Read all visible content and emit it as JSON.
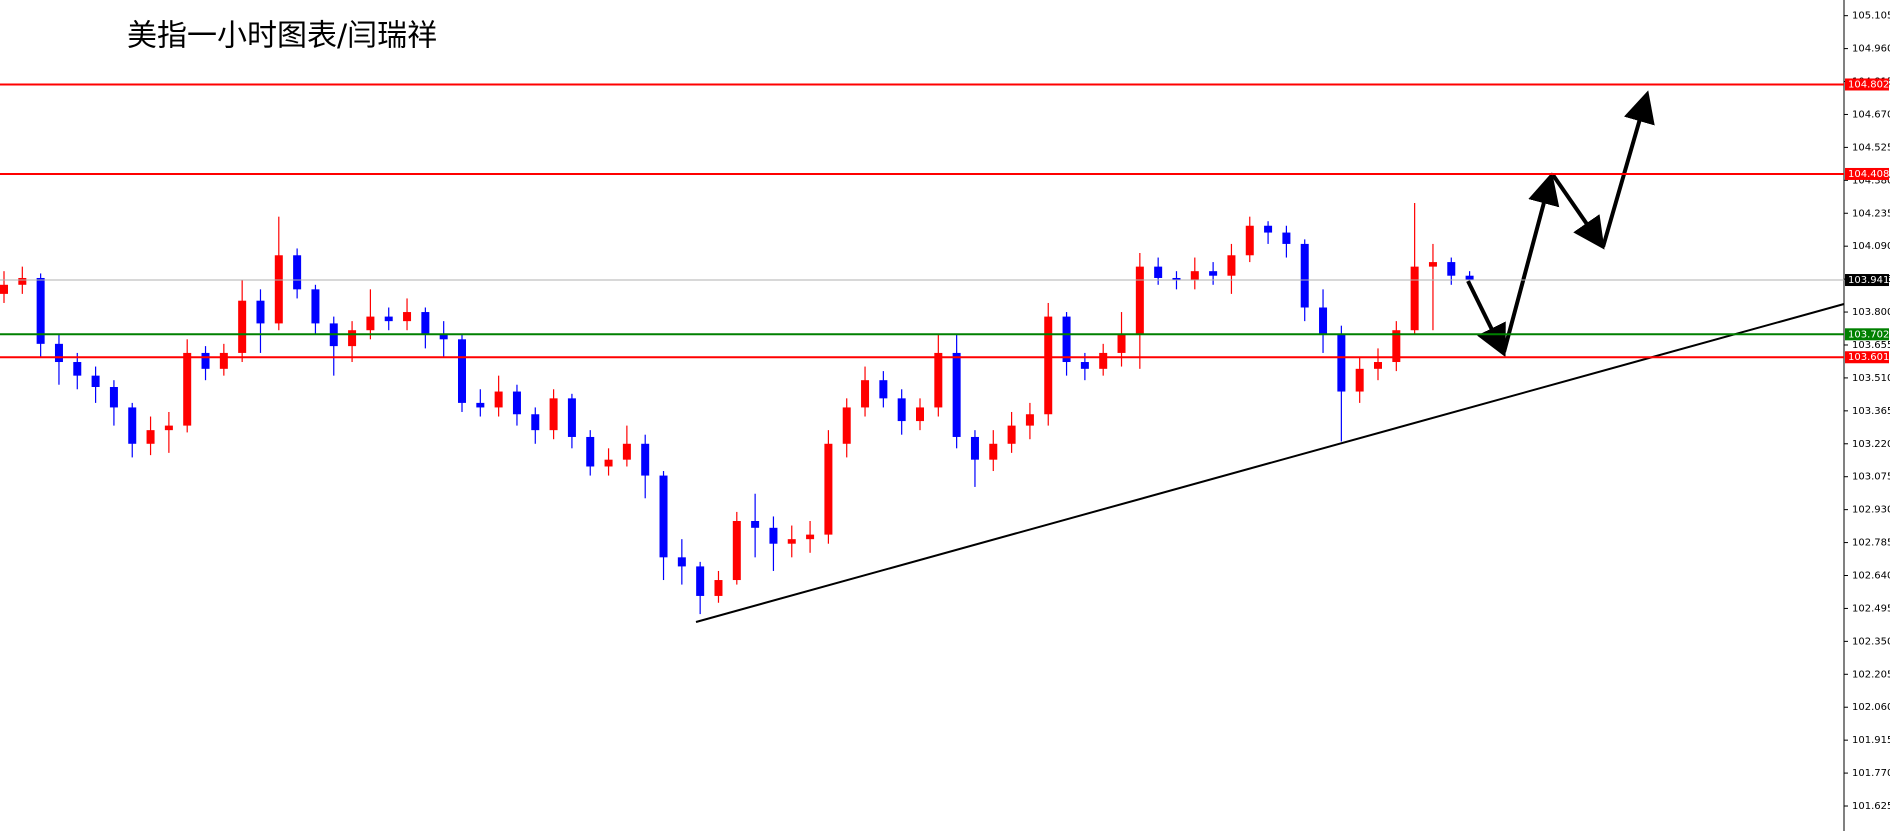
{
  "chart_data": {
    "type": "candlestick",
    "title": "美指一小时图表/闫瑞祥",
    "up_color": "#ff0000",
    "down_color": "#0000ff",
    "open": [
      103.88,
      103.92,
      103.95,
      103.66,
      103.58,
      103.52,
      103.47,
      103.38,
      103.22,
      103.28,
      103.3,
      103.62,
      103.55,
      103.62,
      103.85,
      103.75,
      104.05,
      103.9,
      103.75,
      103.65,
      103.72,
      103.78,
      103.76,
      103.8,
      103.7,
      103.68,
      103.4,
      103.38,
      103.45,
      103.35,
      103.28,
      103.42,
      103.25,
      103.12,
      103.15,
      103.22,
      103.08,
      102.72,
      102.68,
      102.55,
      102.62,
      102.88,
      102.85,
      102.78,
      102.8,
      102.82,
      103.22,
      103.38,
      103.5,
      103.42,
      103.32,
      103.38,
      103.62,
      103.25,
      103.15,
      103.22,
      103.3,
      103.35,
      103.78,
      103.58,
      103.55,
      103.62,
      103.7,
      104.0,
      103.95,
      103.94,
      103.98,
      103.96,
      104.05,
      104.18,
      104.15,
      104.1,
      103.82,
      103.7,
      103.45,
      103.55,
      103.58,
      103.72,
      104.0,
      104.02,
      103.96
    ],
    "high": [
      103.98,
      104.0,
      103.97,
      103.7,
      103.62,
      103.56,
      103.5,
      103.4,
      103.34,
      103.36,
      103.68,
      103.65,
      103.66,
      103.94,
      103.9,
      104.22,
      104.08,
      103.92,
      103.78,
      103.76,
      103.9,
      103.82,
      103.86,
      103.82,
      103.76,
      103.7,
      103.46,
      103.52,
      103.48,
      103.38,
      103.46,
      103.44,
      103.28,
      103.2,
      103.3,
      103.26,
      103.1,
      102.8,
      102.7,
      102.66,
      102.92,
      103.0,
      102.9,
      102.86,
      102.88,
      103.28,
      103.42,
      103.56,
      103.54,
      103.46,
      103.42,
      103.7,
      103.7,
      103.28,
      103.28,
      103.36,
      103.4,
      103.84,
      103.8,
      103.62,
      103.66,
      103.8,
      104.06,
      104.04,
      103.98,
      104.04,
      104.02,
      104.1,
      104.22,
      104.2,
      104.18,
      104.12,
      103.9,
      103.74,
      103.6,
      103.64,
      103.76,
      104.28,
      104.1,
      104.04,
      103.98
    ],
    "low": [
      103.84,
      103.88,
      103.6,
      103.48,
      103.46,
      103.4,
      103.3,
      103.16,
      103.17,
      103.18,
      103.27,
      103.5,
      103.52,
      103.58,
      103.62,
      103.72,
      103.86,
      103.7,
      103.52,
      103.58,
      103.68,
      103.72,
      103.72,
      103.64,
      103.6,
      103.36,
      103.34,
      103.34,
      103.3,
      103.22,
      103.24,
      103.2,
      103.08,
      103.08,
      103.12,
      102.98,
      102.62,
      102.6,
      102.47,
      102.52,
      102.6,
      102.72,
      102.66,
      102.72,
      102.74,
      102.78,
      103.16,
      103.34,
      103.38,
      103.26,
      103.28,
      103.34,
      103.2,
      103.03,
      103.1,
      103.18,
      103.24,
      103.3,
      103.52,
      103.5,
      103.52,
      103.56,
      103.55,
      103.92,
      103.9,
      103.9,
      103.92,
      103.88,
      104.02,
      104.1,
      104.04,
      103.76,
      103.62,
      103.23,
      103.4,
      103.5,
      103.54,
      103.7,
      103.72,
      103.92,
      103.91
    ],
    "close": [
      103.92,
      103.95,
      103.66,
      103.58,
      103.52,
      103.47,
      103.38,
      103.22,
      103.28,
      103.3,
      103.62,
      103.55,
      103.62,
      103.85,
      103.75,
      104.05,
      103.9,
      103.75,
      103.65,
      103.72,
      103.78,
      103.76,
      103.8,
      103.7,
      103.68,
      103.4,
      103.38,
      103.45,
      103.35,
      103.28,
      103.42,
      103.25,
      103.12,
      103.15,
      103.22,
      103.08,
      102.72,
      102.68,
      102.55,
      102.62,
      102.88,
      102.85,
      102.78,
      102.8,
      102.82,
      103.22,
      103.38,
      103.5,
      103.42,
      103.32,
      103.38,
      103.62,
      103.25,
      103.15,
      103.22,
      103.3,
      103.35,
      103.78,
      103.58,
      103.55,
      103.62,
      103.7,
      104.0,
      103.95,
      103.94,
      103.98,
      103.96,
      104.05,
      104.18,
      104.15,
      104.1,
      103.82,
      103.7,
      103.45,
      103.55,
      103.58,
      103.72,
      104.0,
      104.02,
      103.96,
      103.94
    ],
    "ylim": [
      101.515,
      105.174
    ],
    "yticks": [
      105.105,
      {
        "value": 104.96,
        "label": "104.960"
      },
      104.815,
      {
        "value": 104.67,
        "label": "104.670"
      },
      104.525,
      {
        "value": 104.38,
        "label": "104.380"
      },
      104.235,
      {
        "value": 104.09,
        "label": "104.090"
      },
      103.945,
      {
        "value": 103.8,
        "label": "103.800"
      },
      103.655,
      {
        "value": 103.51,
        "label": "103.510"
      },
      103.365,
      {
        "value": 103.22,
        "label": "103.220"
      },
      103.075,
      {
        "value": 102.93,
        "label": "102.930"
      },
      102.785,
      {
        "value": 102.64,
        "label": "102.640"
      },
      102.495,
      {
        "value": 102.35,
        "label": "102.350"
      },
      102.205,
      {
        "value": 102.06,
        "label": "102.060"
      },
      101.915,
      {
        "value": 101.77,
        "label": "101.770"
      },
      101.625
    ],
    "levels": [
      {
        "value": 104.802,
        "color": "#ff0000"
      },
      {
        "value": 104.408,
        "color": "#ff0000"
      },
      {
        "value": 103.941,
        "color": "#000000"
      },
      {
        "value": 103.702,
        "color": "#008000"
      },
      {
        "value": 103.601,
        "color": "#ff0000"
      }
    ]
  }
}
